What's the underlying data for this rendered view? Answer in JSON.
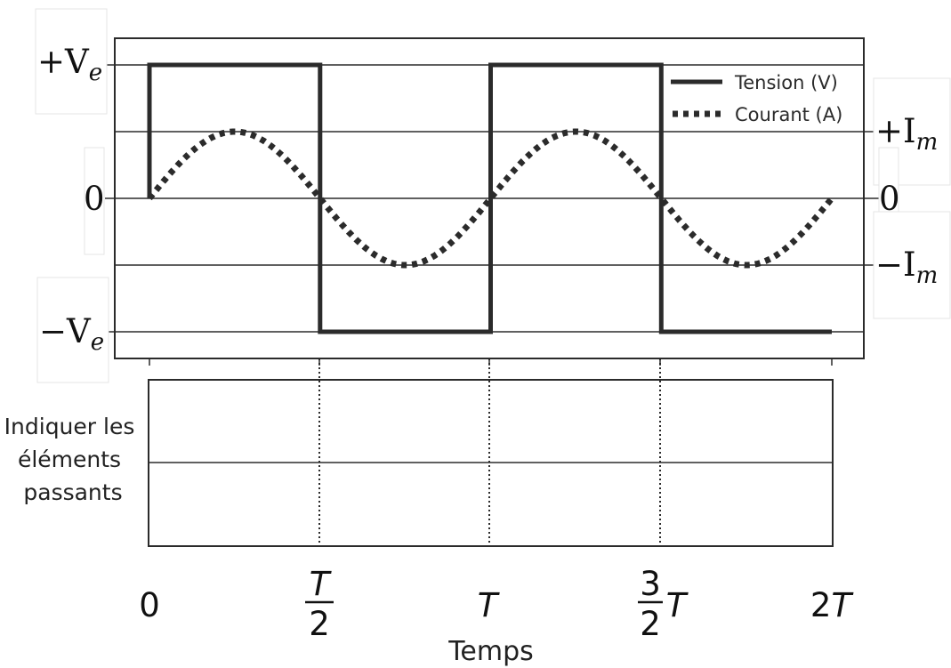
{
  "chart_data": {
    "type": "line",
    "x_ticks": [
      "0",
      "T/2",
      "T",
      "3/2 T",
      "2T"
    ],
    "xlabel": "Temps",
    "xlim": [
      0,
      2
    ],
    "x_unit": "T",
    "ylim_levels": {
      "plus_Ve": 1,
      "plus_Im": 0.5,
      "zero": 0,
      "minus_Im": -0.5,
      "minus_Ve": -1
    },
    "left_axis_labels": {
      "plus_Ve": "+V",
      "plus_Ve_sub": "e",
      "zero": "0",
      "minus_Ve": "−V",
      "minus_Ve_sub": "e"
    },
    "right_axis_labels": {
      "plus_Im": "+I",
      "plus_Im_sub": "m",
      "zero": "0",
      "minus_Im": "−I",
      "minus_Im_sub": "m"
    },
    "series": [
      {
        "name": "Tension (V)",
        "style": "solid",
        "color": "#2b2b2b",
        "x": [
          0,
          0,
          0.5,
          0.5,
          1,
          1,
          1.5,
          1.5,
          2
        ],
        "y": [
          0,
          1,
          1,
          -1,
          -1,
          1,
          1,
          -1,
          -1
        ]
      },
      {
        "name": "Courant (A)",
        "style": "dotted",
        "color": "#2b2b2b",
        "function": "0.5*sin(2*pi*x)",
        "x_range": [
          0,
          2
        ]
      }
    ],
    "legend_position": "top-right",
    "grid": false
  },
  "lower_panel": {
    "label_lines": [
      "Indiquer les",
      "éléments",
      "passants"
    ]
  },
  "colors": {
    "line": "#2b2b2b",
    "frame": "#2b2b2b",
    "background": "#ffffff"
  }
}
